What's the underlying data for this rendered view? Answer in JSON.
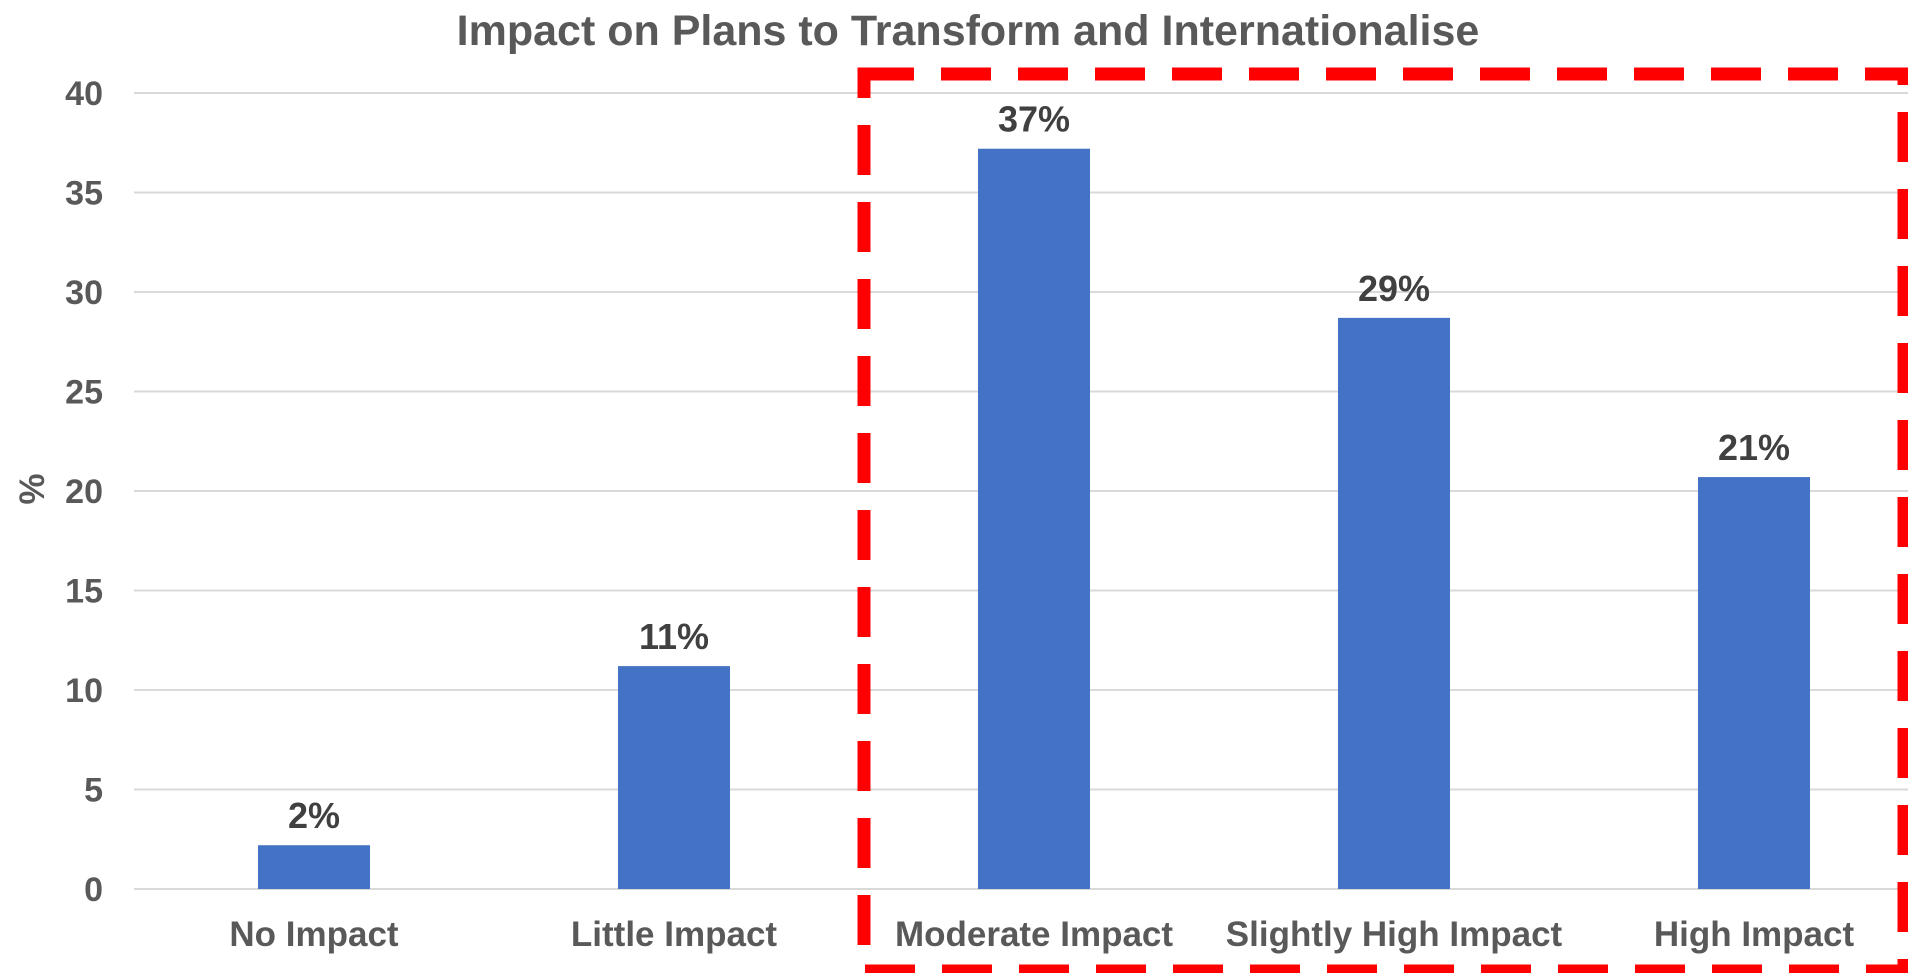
{
  "chart_data": {
    "type": "bar",
    "title": "Impact on Plans to Transform and Internationalise",
    "xlabel": "",
    "ylabel": "%",
    "categories": [
      "No Impact",
      "Little Impact",
      "Moderate Impact",
      "Slightly High Impact",
      "High Impact"
    ],
    "values": [
      2.2,
      11.2,
      37.2,
      28.7,
      20.7
    ],
    "data_labels": [
      "2%",
      "11%",
      "37%",
      "29%",
      "21%"
    ],
    "ylim": [
      0,
      40
    ],
    "yticks": [
      0,
      5,
      10,
      15,
      20,
      25,
      30,
      35,
      40
    ],
    "grid": true,
    "legend": "none",
    "bar_color": "#4472C4",
    "gridline_color": "#D9D9D9",
    "highlight": {
      "style": "dashed-box",
      "color": "#FF0000",
      "categories": [
        "Moderate Impact",
        "Slightly High Impact",
        "High Impact"
      ]
    }
  }
}
